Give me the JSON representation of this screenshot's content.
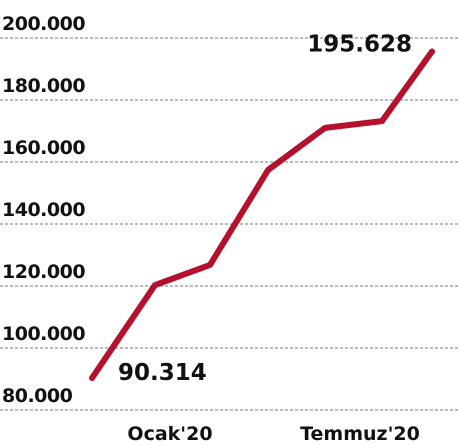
{
  "chart_data": {
    "type": "line",
    "categories": [
      null,
      "Ocak'20",
      null,
      null,
      null,
      "Temmuz'20",
      null
    ],
    "series": [
      {
        "name": null,
        "color": "#b5102c",
        "values": [
          90314,
          120300,
          126800,
          157400,
          171000,
          173200,
          195628
        ],
        "value_labels": [
          "90.314",
          null,
          null,
          null,
          null,
          null,
          "195.628"
        ]
      }
    ],
    "ylim": [
      80000,
      200000
    ],
    "yticks": [
      {
        "value": 80000,
        "label": "80.000"
      },
      {
        "value": 100000,
        "label": "100.000"
      },
      {
        "value": 120000,
        "label": "120.000"
      },
      {
        "value": 140000,
        "label": "140.000"
      },
      {
        "value": 160000,
        "label": "160.000"
      },
      {
        "value": 180000,
        "label": "180.000"
      },
      {
        "value": 200000,
        "label": "200.000"
      }
    ],
    "grid": true
  }
}
